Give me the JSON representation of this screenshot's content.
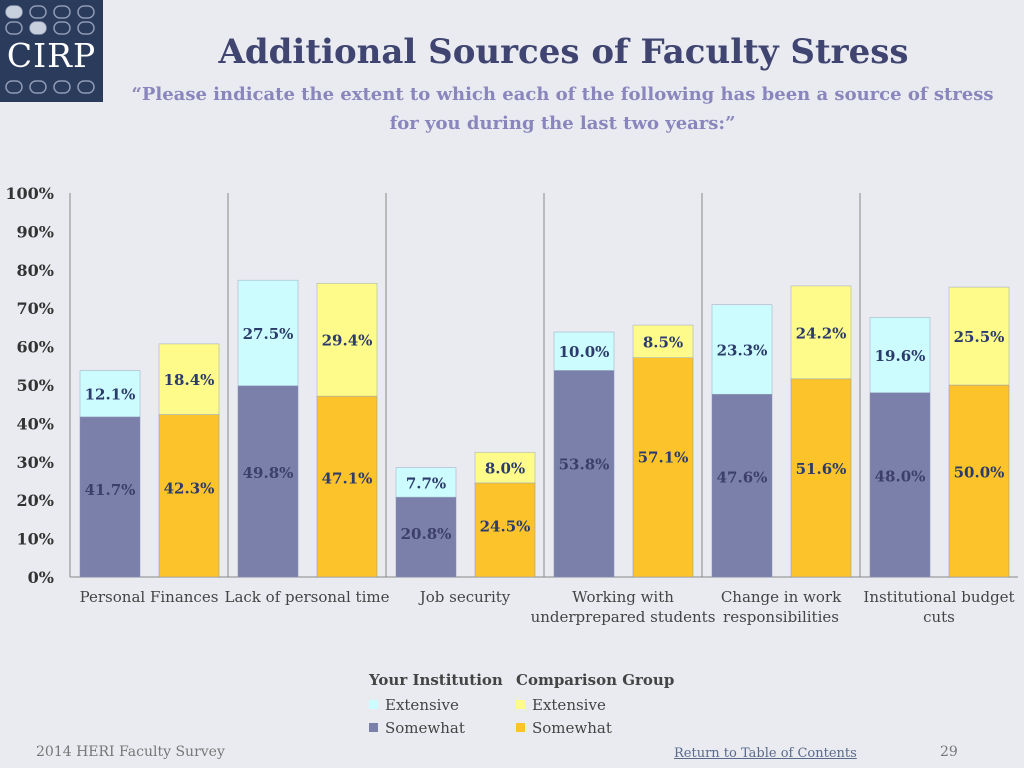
{
  "header": {
    "logo_text": "CIRP",
    "title": "Additional Sources of Faculty Stress",
    "subtitle": "“Please indicate the extent to which each of the following has been a source of stress for you during the last two years:”"
  },
  "colors": {
    "inst_extensive": "#ccfcfd",
    "inst_somewhat": "#7b80ab",
    "comp_extensive": "#fffb8a",
    "comp_somewhat": "#fcc42a",
    "axis": "#888888",
    "label": "#2b3b6b"
  },
  "chart_data": {
    "type": "bar",
    "stacked": true,
    "title": "Additional Sources of Faculty Stress",
    "ylim": [
      0,
      100
    ],
    "yticks": [
      "0%",
      "10%",
      "20%",
      "30%",
      "40%",
      "50%",
      "60%",
      "70%",
      "80%",
      "90%",
      "100%"
    ],
    "categories": [
      [
        "Personal Finances"
      ],
      [
        "Lack of personal time"
      ],
      [
        "Job security"
      ],
      [
        "Working with",
        "underprepared students"
      ],
      [
        "Change in work",
        "responsibilities"
      ],
      [
        "Institutional budget",
        "cuts"
      ]
    ],
    "series": [
      {
        "group": "Your Institution",
        "name": "Somewhat",
        "values": [
          41.7,
          49.8,
          20.8,
          53.8,
          47.6,
          48.0
        ],
        "labels": [
          "41.7%",
          "49.8%",
          "20.8%",
          "53.8%",
          "47.6%",
          "48.0%"
        ]
      },
      {
        "group": "Your Institution",
        "name": "Extensive",
        "values": [
          12.1,
          27.5,
          7.7,
          10.0,
          23.3,
          19.6
        ],
        "labels": [
          "12.1%",
          "27.5%",
          "7.7%",
          "10.0%",
          "23.3%",
          "19.6%"
        ]
      },
      {
        "group": "Comparison Group",
        "name": "Somewhat",
        "values": [
          42.3,
          47.1,
          24.5,
          57.1,
          51.6,
          50.0
        ],
        "labels": [
          "42.3%",
          "47.1%",
          "24.5%",
          "57.1%",
          "51.6%",
          "50.0%"
        ]
      },
      {
        "group": "Comparison Group",
        "name": "Extensive",
        "values": [
          18.4,
          29.4,
          8.0,
          8.5,
          24.2,
          25.5
        ],
        "labels": [
          "18.4%",
          "29.4%",
          "8.0%",
          "8.5%",
          "24.2%",
          "25.5%"
        ]
      }
    ]
  },
  "legend": {
    "institution": {
      "title": "Your Institution",
      "extensive": "Extensive",
      "somewhat": "Somewhat"
    },
    "comparison": {
      "title": "Comparison Group",
      "extensive": "Extensive",
      "somewhat": "Somewhat"
    }
  },
  "footer": {
    "survey": "2014 HERI Faculty Survey",
    "link": "Return to Table of Contents",
    "page": "29"
  }
}
